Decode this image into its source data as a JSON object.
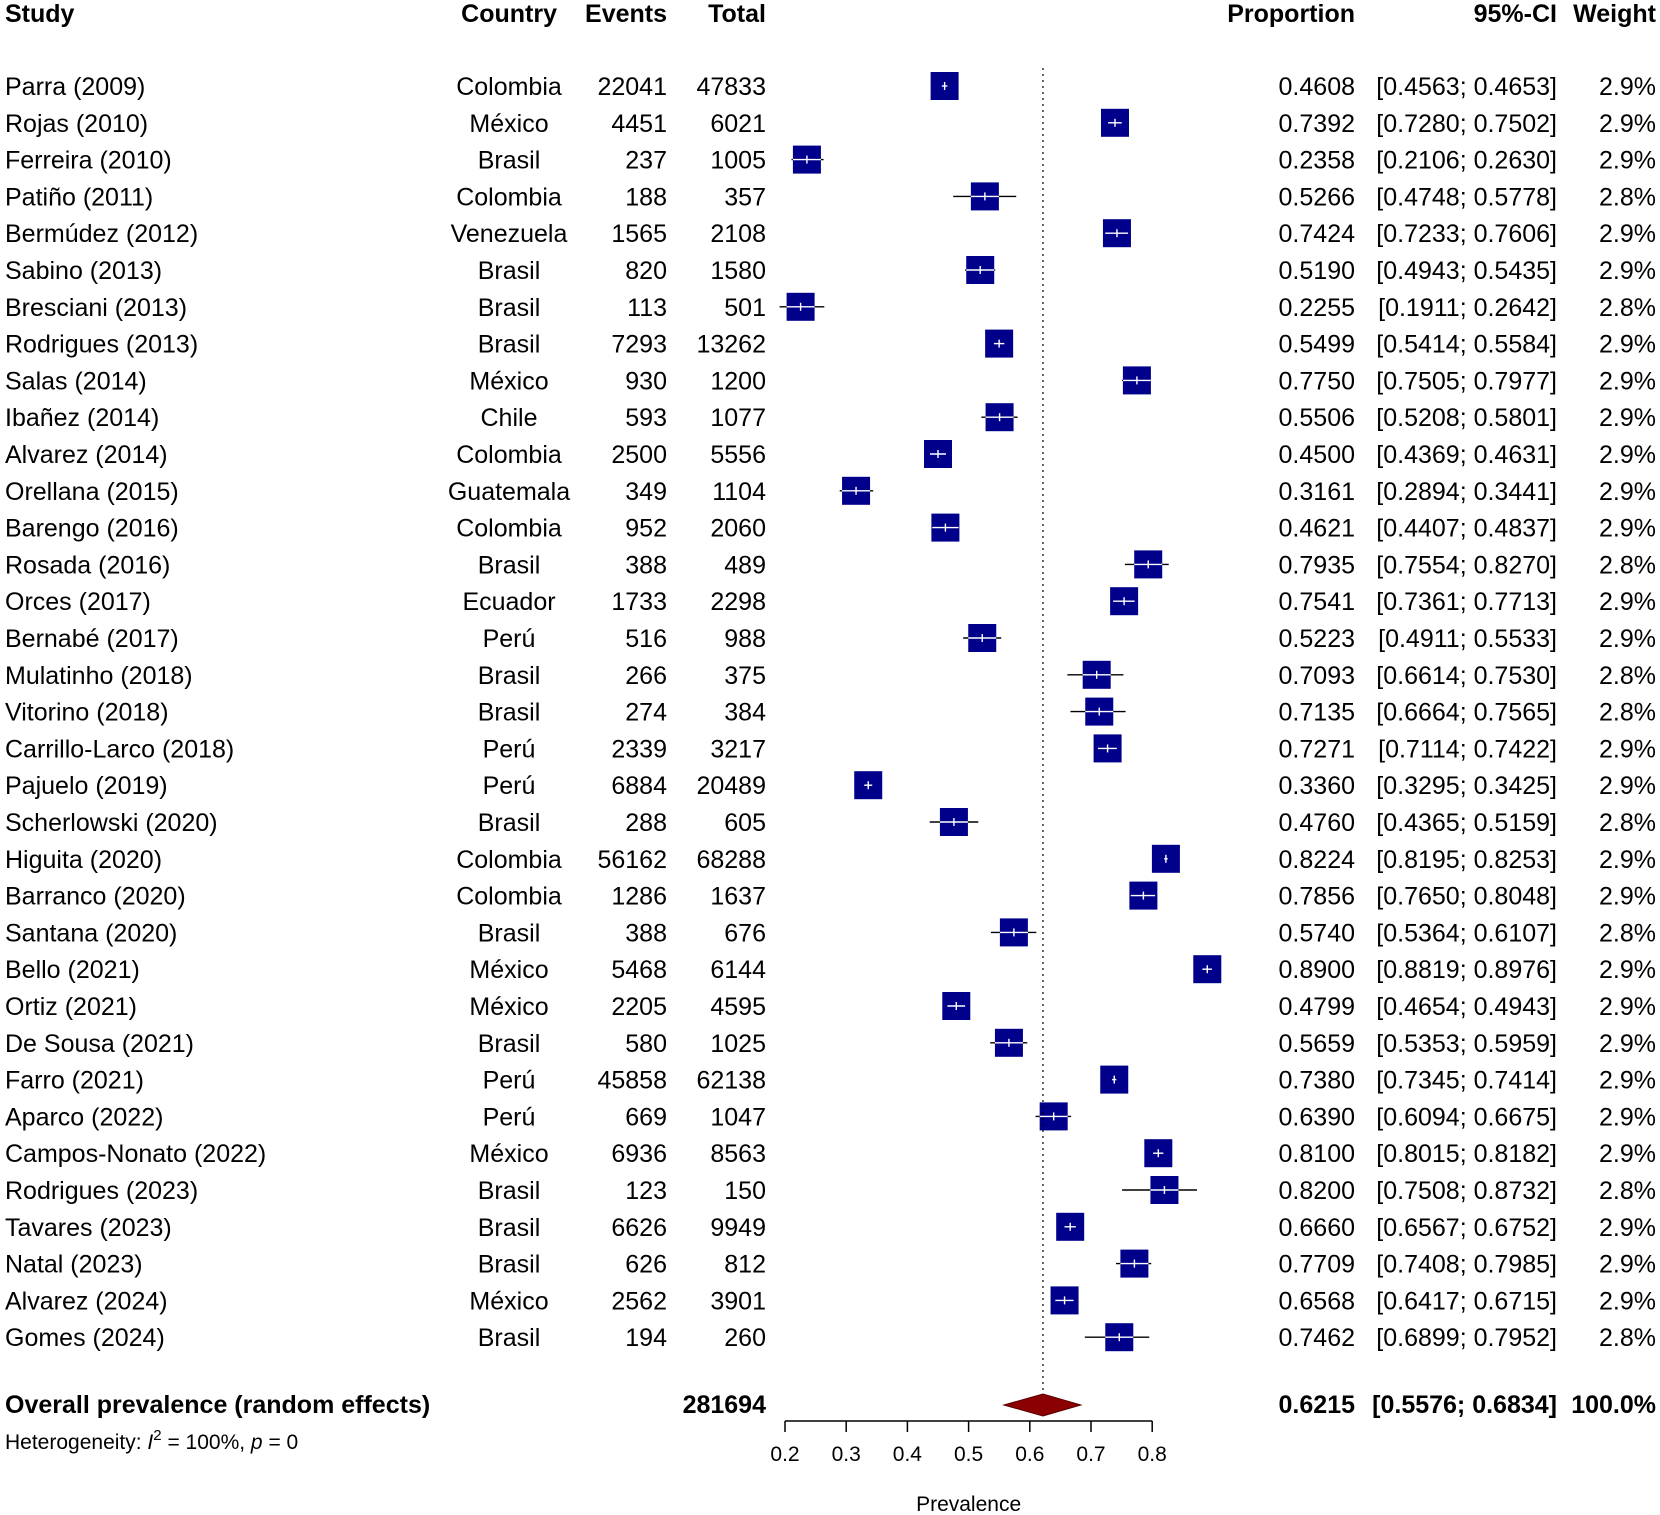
{
  "headers": {
    "study": "Study",
    "country": "Country",
    "events": "Events",
    "total": "Total",
    "proportion": "Proportion",
    "ci": "95%-CI",
    "weight": "Weight"
  },
  "studies": [
    {
      "study": "Parra (2009)",
      "country": "Colombia",
      "events": "22041",
      "total": "47833",
      "proportion": 0.4608,
      "lower": 0.4563,
      "upper": 0.4653,
      "proportion_text": "0.4608",
      "ci_text": "[0.4563; 0.4653]",
      "weight": "2.9%"
    },
    {
      "study": "Rojas (2010)",
      "country": "México",
      "events": "4451",
      "total": "6021",
      "proportion": 0.7392,
      "lower": 0.728,
      "upper": 0.7502,
      "proportion_text": "0.7392",
      "ci_text": "[0.7280; 0.7502]",
      "weight": "2.9%"
    },
    {
      "study": "Ferreira (2010)",
      "country": "Brasil",
      "events": "237",
      "total": "1005",
      "proportion": 0.2358,
      "lower": 0.2106,
      "upper": 0.263,
      "proportion_text": "0.2358",
      "ci_text": "[0.2106; 0.2630]",
      "weight": "2.9%"
    },
    {
      "study": "Patiño (2011)",
      "country": "Colombia",
      "events": "188",
      "total": "357",
      "proportion": 0.5266,
      "lower": 0.4748,
      "upper": 0.5778,
      "proportion_text": "0.5266",
      "ci_text": "[0.4748; 0.5778]",
      "weight": "2.8%"
    },
    {
      "study": "Bermúdez (2012)",
      "country": "Venezuela",
      "events": "1565",
      "total": "2108",
      "proportion": 0.7424,
      "lower": 0.7233,
      "upper": 0.7606,
      "proportion_text": "0.7424",
      "ci_text": "[0.7233; 0.7606]",
      "weight": "2.9%"
    },
    {
      "study": "Sabino (2013)",
      "country": "Brasil",
      "events": "820",
      "total": "1580",
      "proportion": 0.519,
      "lower": 0.4943,
      "upper": 0.5435,
      "proportion_text": "0.5190",
      "ci_text": "[0.4943; 0.5435]",
      "weight": "2.9%"
    },
    {
      "study": "Bresciani (2013)",
      "country": "Brasil",
      "events": "113",
      "total": "501",
      "proportion": 0.2255,
      "lower": 0.1911,
      "upper": 0.2642,
      "proportion_text": "0.2255",
      "ci_text": "[0.1911; 0.2642]",
      "weight": "2.8%"
    },
    {
      "study": "Rodrigues (2013)",
      "country": "Brasil",
      "events": "7293",
      "total": "13262",
      "proportion": 0.5499,
      "lower": 0.5414,
      "upper": 0.5584,
      "proportion_text": "0.5499",
      "ci_text": "[0.5414; 0.5584]",
      "weight": "2.9%"
    },
    {
      "study": "Salas (2014)",
      "country": "México",
      "events": "930",
      "total": "1200",
      "proportion": 0.775,
      "lower": 0.7505,
      "upper": 0.7977,
      "proportion_text": "0.7750",
      "ci_text": "[0.7505; 0.7977]",
      "weight": "2.9%"
    },
    {
      "study": "Ibañez (2014)",
      "country": "Chile",
      "events": "593",
      "total": "1077",
      "proportion": 0.5506,
      "lower": 0.5208,
      "upper": 0.5801,
      "proportion_text": "0.5506",
      "ci_text": "[0.5208; 0.5801]",
      "weight": "2.9%"
    },
    {
      "study": "Alvarez (2014)",
      "country": "Colombia",
      "events": "2500",
      "total": "5556",
      "proportion": 0.45,
      "lower": 0.4369,
      "upper": 0.4631,
      "proportion_text": "0.4500",
      "ci_text": "[0.4369; 0.4631]",
      "weight": "2.9%"
    },
    {
      "study": "Orellana (2015)",
      "country": "Guatemala",
      "events": "349",
      "total": "1104",
      "proportion": 0.3161,
      "lower": 0.2894,
      "upper": 0.3441,
      "proportion_text": "0.3161",
      "ci_text": "[0.2894; 0.3441]",
      "weight": "2.9%"
    },
    {
      "study": "Barengo (2016)",
      "country": "Colombia",
      "events": "952",
      "total": "2060",
      "proportion": 0.4621,
      "lower": 0.4407,
      "upper": 0.4837,
      "proportion_text": "0.4621",
      "ci_text": "[0.4407; 0.4837]",
      "weight": "2.9%"
    },
    {
      "study": "Rosada (2016)",
      "country": "Brasil",
      "events": "388",
      "total": "489",
      "proportion": 0.7935,
      "lower": 0.7554,
      "upper": 0.827,
      "proportion_text": "0.7935",
      "ci_text": "[0.7554; 0.8270]",
      "weight": "2.8%"
    },
    {
      "study": "Orces (2017)",
      "country": "Ecuador",
      "events": "1733",
      "total": "2298",
      "proportion": 0.7541,
      "lower": 0.7361,
      "upper": 0.7713,
      "proportion_text": "0.7541",
      "ci_text": "[0.7361; 0.7713]",
      "weight": "2.9%"
    },
    {
      "study": "Bernabé (2017)",
      "country": "Perú",
      "events": "516",
      "total": "988",
      "proportion": 0.5223,
      "lower": 0.4911,
      "upper": 0.5533,
      "proportion_text": "0.5223",
      "ci_text": "[0.4911; 0.5533]",
      "weight": "2.9%"
    },
    {
      "study": "Mulatinho (2018)",
      "country": "Brasil",
      "events": "266",
      "total": "375",
      "proportion": 0.7093,
      "lower": 0.6614,
      "upper": 0.753,
      "proportion_text": "0.7093",
      "ci_text": "[0.6614; 0.7530]",
      "weight": "2.8%"
    },
    {
      "study": "Vitorino (2018)",
      "country": "Brasil",
      "events": "274",
      "total": "384",
      "proportion": 0.7135,
      "lower": 0.6664,
      "upper": 0.7565,
      "proportion_text": "0.7135",
      "ci_text": "[0.6664; 0.7565]",
      "weight": "2.8%"
    },
    {
      "study": "Carrillo-Larco (2018)",
      "country": "Perú",
      "events": "2339",
      "total": "3217",
      "proportion": 0.7271,
      "lower": 0.7114,
      "upper": 0.7422,
      "proportion_text": "0.7271",
      "ci_text": "[0.7114; 0.7422]",
      "weight": "2.9%"
    },
    {
      "study": "Pajuelo (2019)",
      "country": "Perú",
      "events": "6884",
      "total": "20489",
      "proportion": 0.336,
      "lower": 0.3295,
      "upper": 0.3425,
      "proportion_text": "0.3360",
      "ci_text": "[0.3295; 0.3425]",
      "weight": "2.9%"
    },
    {
      "study": "Scherlowski (2020)",
      "country": "Brasil",
      "events": "288",
      "total": "605",
      "proportion": 0.476,
      "lower": 0.4365,
      "upper": 0.5159,
      "proportion_text": "0.4760",
      "ci_text": "[0.4365; 0.5159]",
      "weight": "2.8%"
    },
    {
      "study": "Higuita (2020)",
      "country": "Colombia",
      "events": "56162",
      "total": "68288",
      "proportion": 0.8224,
      "lower": 0.8195,
      "upper": 0.8253,
      "proportion_text": "0.8224",
      "ci_text": "[0.8195; 0.8253]",
      "weight": "2.9%"
    },
    {
      "study": "Barranco (2020)",
      "country": "Colombia",
      "events": "1286",
      "total": "1637",
      "proportion": 0.7856,
      "lower": 0.765,
      "upper": 0.8048,
      "proportion_text": "0.7856",
      "ci_text": "[0.7650; 0.8048]",
      "weight": "2.9%"
    },
    {
      "study": "Santana (2020)",
      "country": "Brasil",
      "events": "388",
      "total": "676",
      "proportion": 0.574,
      "lower": 0.5364,
      "upper": 0.6107,
      "proportion_text": "0.5740",
      "ci_text": "[0.5364; 0.6107]",
      "weight": "2.8%"
    },
    {
      "study": "Bello (2021)",
      "country": "México",
      "events": "5468",
      "total": "6144",
      "proportion": 0.89,
      "lower": 0.8819,
      "upper": 0.8976,
      "proportion_text": "0.8900",
      "ci_text": "[0.8819; 0.8976]",
      "weight": "2.9%"
    },
    {
      "study": "Ortiz (2021)",
      "country": "México",
      "events": "2205",
      "total": "4595",
      "proportion": 0.4799,
      "lower": 0.4654,
      "upper": 0.4943,
      "proportion_text": "0.4799",
      "ci_text": "[0.4654; 0.4943]",
      "weight": "2.9%"
    },
    {
      "study": "De Sousa (2021)",
      "country": "Brasil",
      "events": "580",
      "total": "1025",
      "proportion": 0.5659,
      "lower": 0.5353,
      "upper": 0.5959,
      "proportion_text": "0.5659",
      "ci_text": "[0.5353; 0.5959]",
      "weight": "2.9%"
    },
    {
      "study": "Farro (2021)",
      "country": "Perú",
      "events": "45858",
      "total": "62138",
      "proportion": 0.738,
      "lower": 0.7345,
      "upper": 0.7414,
      "proportion_text": "0.7380",
      "ci_text": "[0.7345; 0.7414]",
      "weight": "2.9%"
    },
    {
      "study": "Aparco (2022)",
      "country": "Perú",
      "events": "669",
      "total": "1047",
      "proportion": 0.639,
      "lower": 0.6094,
      "upper": 0.6675,
      "proportion_text": "0.6390",
      "ci_text": "[0.6094; 0.6675]",
      "weight": "2.9%"
    },
    {
      "study": "Campos-Nonato (2022)",
      "country": "México",
      "events": "6936",
      "total": "8563",
      "proportion": 0.81,
      "lower": 0.8015,
      "upper": 0.8182,
      "proportion_text": "0.8100",
      "ci_text": "[0.8015; 0.8182]",
      "weight": "2.9%"
    },
    {
      "study": "Rodrigues (2023)",
      "country": "Brasil",
      "events": "123",
      "total": "150",
      "proportion": 0.82,
      "lower": 0.7508,
      "upper": 0.8732,
      "proportion_text": "0.8200",
      "ci_text": "[0.7508; 0.8732]",
      "weight": "2.8%"
    },
    {
      "study": "Tavares (2023)",
      "country": "Brasil",
      "events": "6626",
      "total": "9949",
      "proportion": 0.666,
      "lower": 0.6567,
      "upper": 0.6752,
      "proportion_text": "0.6660",
      "ci_text": "[0.6567; 0.6752]",
      "weight": "2.9%"
    },
    {
      "study": "Natal (2023)",
      "country": "Brasil",
      "events": "626",
      "total": "812",
      "proportion": 0.7709,
      "lower": 0.7408,
      "upper": 0.7985,
      "proportion_text": "0.7709",
      "ci_text": "[0.7408; 0.7985]",
      "weight": "2.9%"
    },
    {
      "study": "Alvarez (2024)",
      "country": "México",
      "events": "2562",
      "total": "3901",
      "proportion": 0.6568,
      "lower": 0.6417,
      "upper": 0.6715,
      "proportion_text": "0.6568",
      "ci_text": "[0.6417; 0.6715]",
      "weight": "2.9%"
    },
    {
      "study": "Gomes (2024)",
      "country": "Brasil",
      "events": "194",
      "total": "260",
      "proportion": 0.7462,
      "lower": 0.6899,
      "upper": 0.7952,
      "proportion_text": "0.7462",
      "ci_text": "[0.6899; 0.7952]",
      "weight": "2.8%"
    }
  ],
  "overall": {
    "label": "Overall prevalence (random effects)",
    "total": "281694",
    "proportion": 0.6215,
    "lower": 0.5576,
    "upper": 0.6834,
    "proportion_text": "0.6215",
    "ci_text": "[0.5576; 0.6834]",
    "weight": "100.0%"
  },
  "heterogeneity": {
    "prefix": "Heterogeneity: ",
    "i_letter": "I",
    "i_sup": "2",
    "i_value": " = 100%, ",
    "p_letter": "p",
    "p_value": " = 0"
  },
  "chart_data": {
    "type": "forest",
    "title": "",
    "xlabel": "Prevalence",
    "ylabel": "",
    "xlim": [
      0.2,
      0.8
    ],
    "ticks": [
      0.2,
      0.3,
      0.4,
      0.5,
      0.6,
      0.7,
      0.8
    ],
    "tick_labels": [
      "0.2",
      "0.3",
      "0.4",
      "0.5",
      "0.6",
      "0.7",
      "0.8"
    ],
    "reference_line": 0.6215,
    "grid": false
  },
  "colors": {
    "square": "#00008B",
    "diamond": "#8B0000",
    "text": "#000000"
  }
}
